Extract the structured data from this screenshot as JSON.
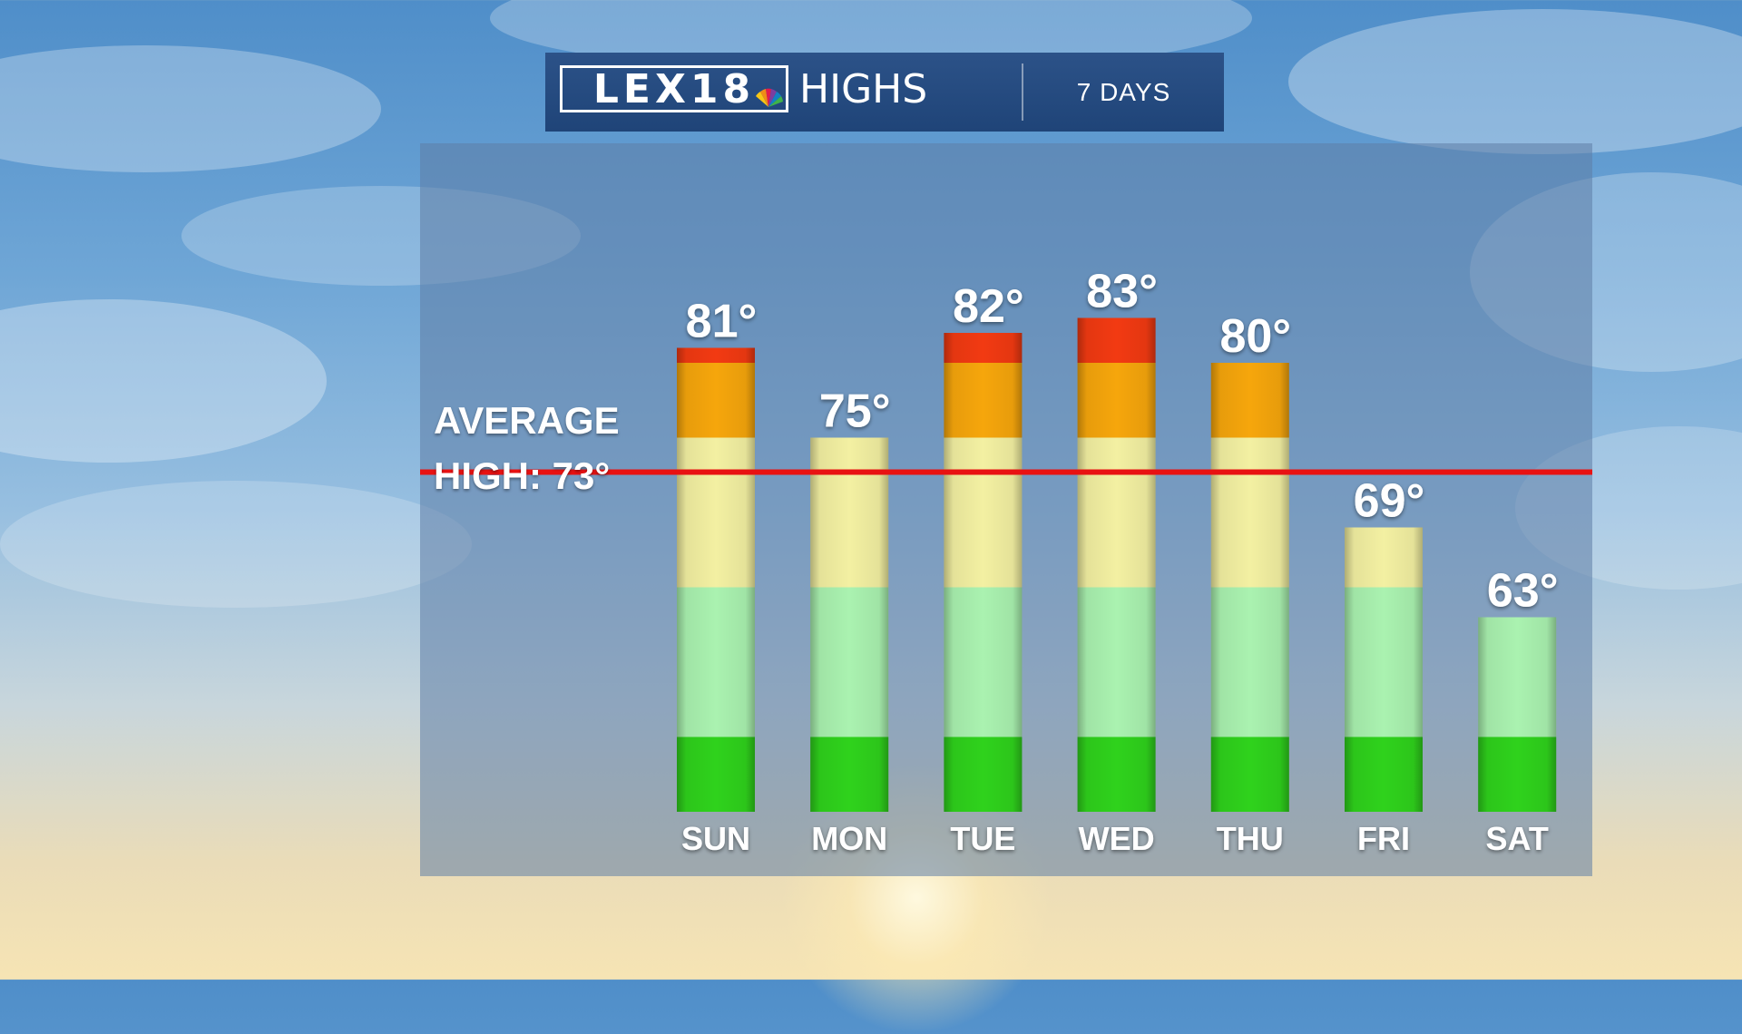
{
  "header": {
    "logo_text": "LEX18",
    "title": "HIGHS",
    "period": "7 DAYS"
  },
  "chart_data": {
    "type": "bar",
    "categories": [
      "SUN",
      "MON",
      "TUE",
      "WED",
      "THU",
      "FRI",
      "SAT"
    ],
    "values": [
      81,
      75,
      82,
      83,
      80,
      69,
      63
    ],
    "value_labels": [
      "81°",
      "75°",
      "82°",
      "83°",
      "80°",
      "69°",
      "63°"
    ],
    "ylim": [
      50,
      83
    ],
    "average": 73,
    "average_label": [
      "AVERAGE",
      "HIGH: 73°"
    ],
    "color_bands": [
      {
        "from": 50,
        "to": 55,
        "color": "#2fd21c"
      },
      {
        "from": 55,
        "to": 65,
        "color": "#aaf2b0"
      },
      {
        "from": 65,
        "to": 75,
        "color": "#f3f0a2"
      },
      {
        "from": 75,
        "to": 80,
        "color": "#f6a60c"
      },
      {
        "from": 80,
        "to": 90,
        "color": "#f23a12"
      }
    ],
    "average_line_color": "#e81212"
  }
}
